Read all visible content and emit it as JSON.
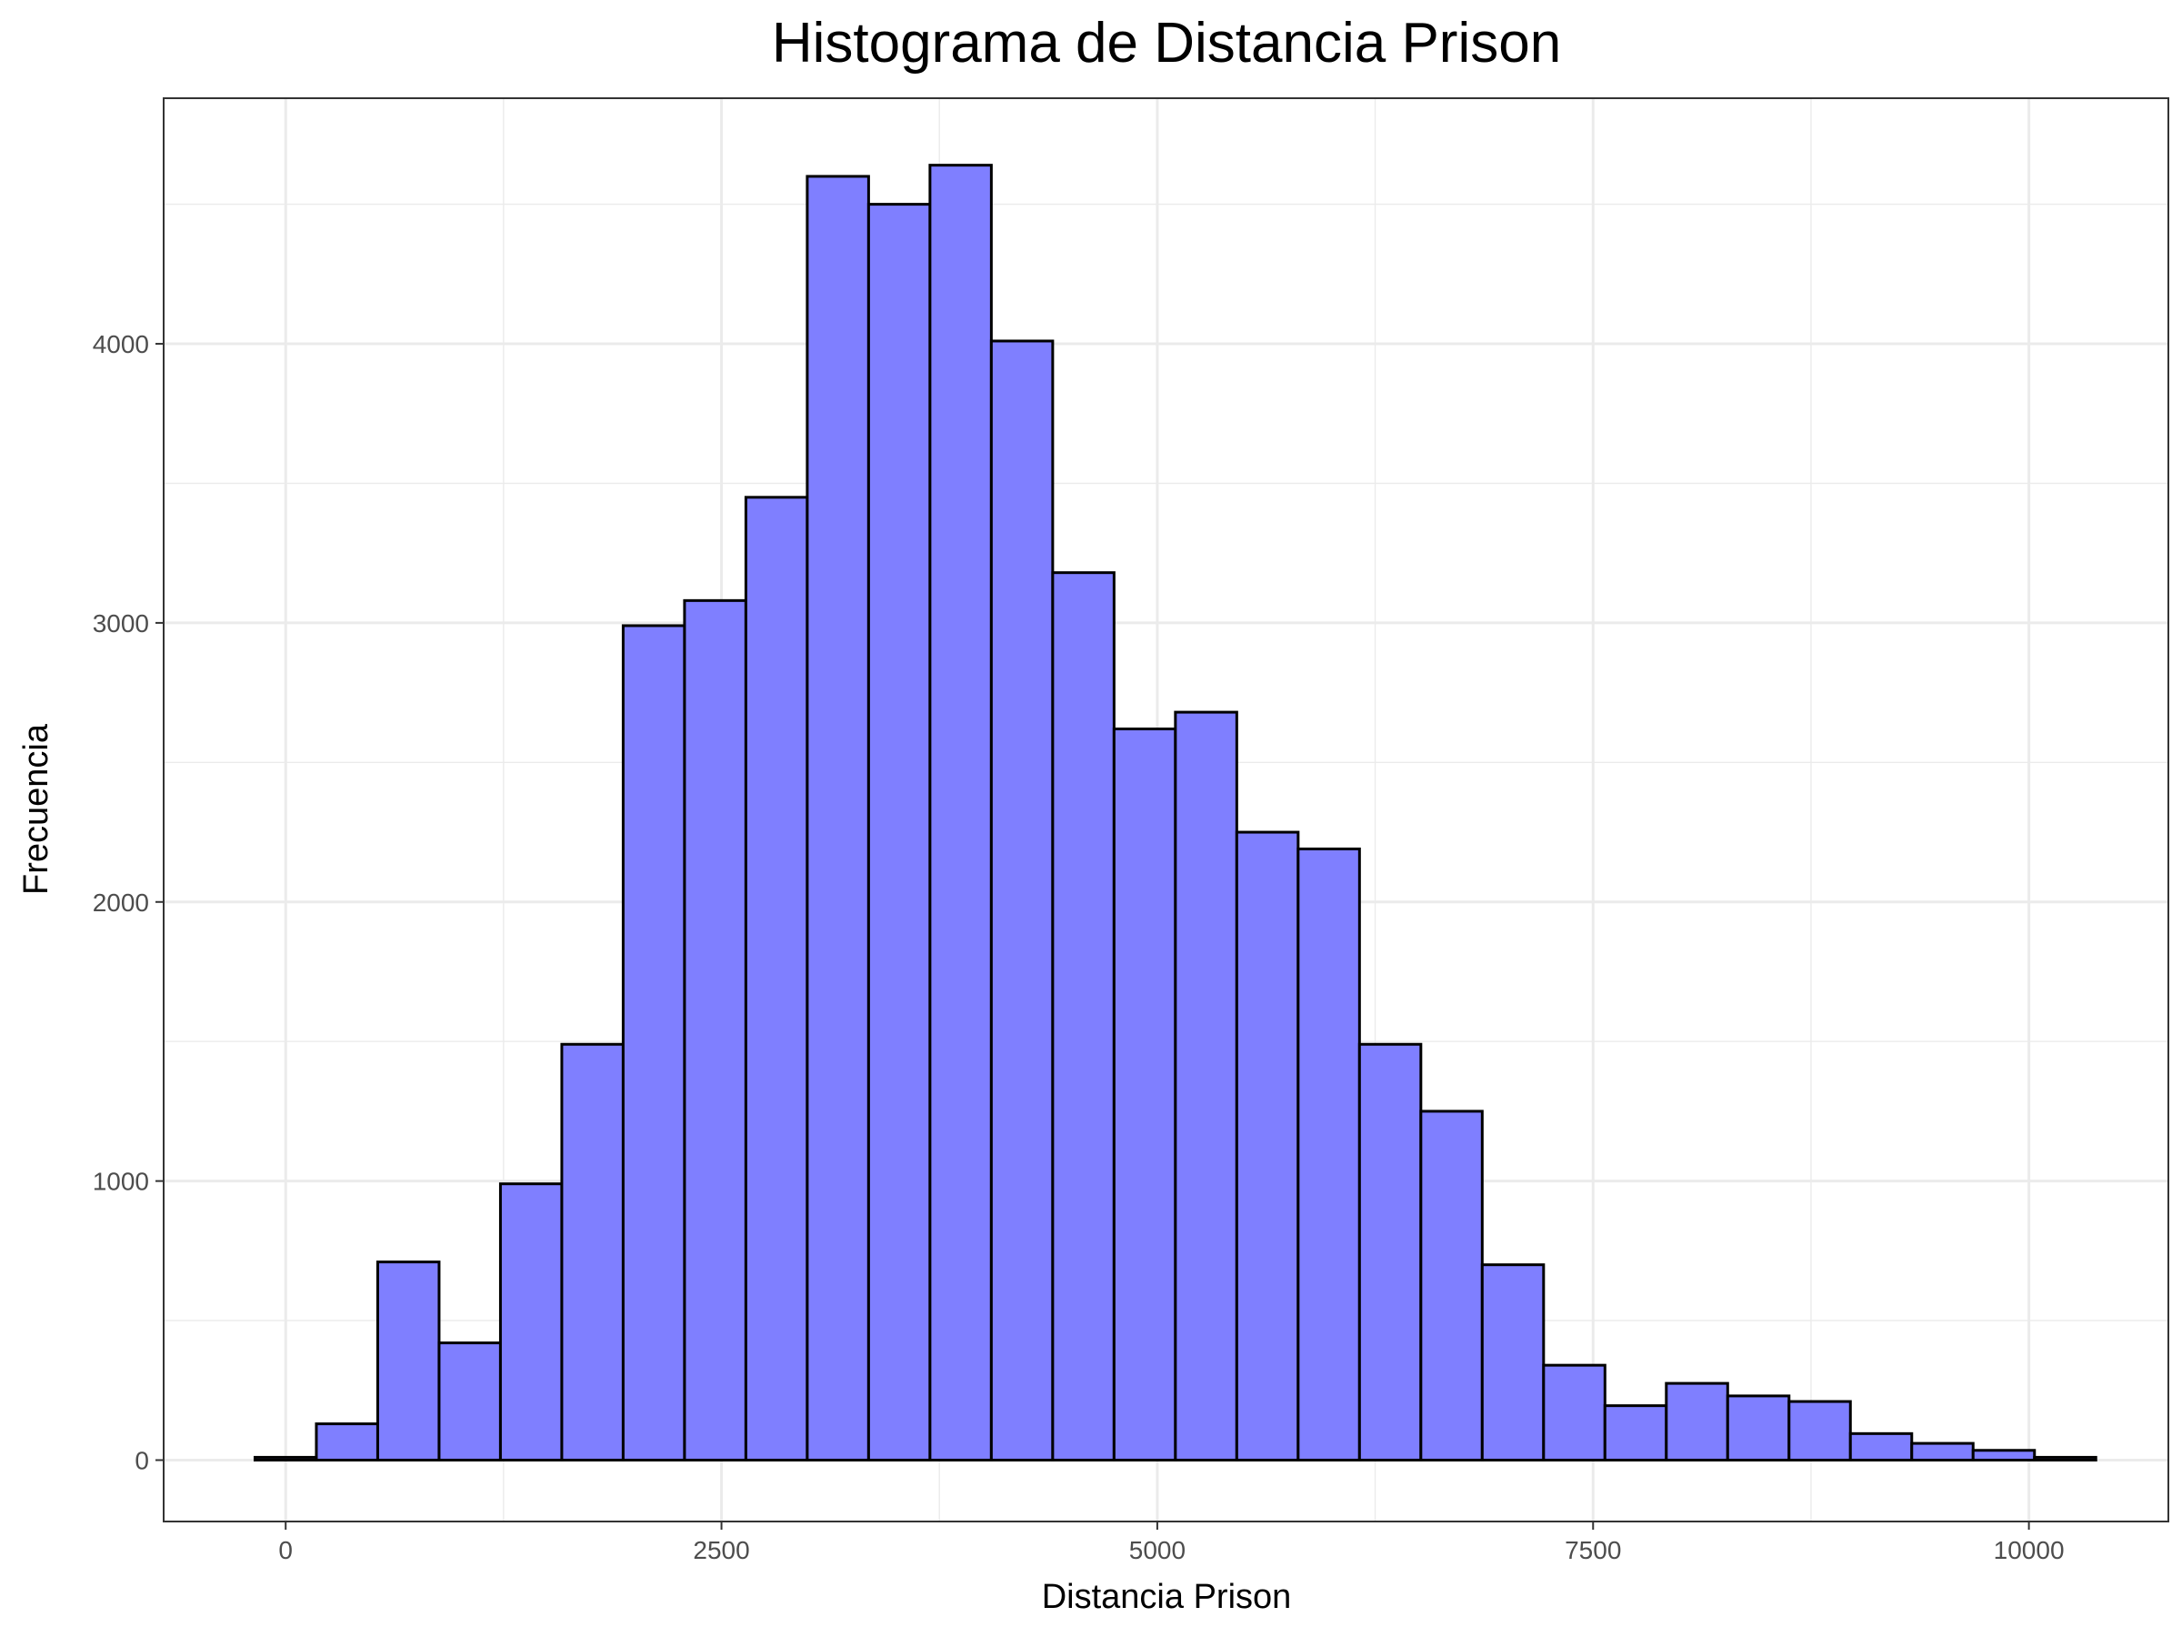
{
  "chart_data": {
    "type": "bar",
    "title": "Histograma de Distancia Prison",
    "xlabel": "Distancia Prison",
    "ylabel": "Frecuencia",
    "bin_width": 352,
    "bin_starts": [
      -176,
      176,
      528,
      880,
      1232,
      1584,
      1936,
      2288,
      2640,
      2992,
      3344,
      3696,
      4048,
      4400,
      4752,
      5104,
      5456,
      5808,
      6160,
      6512,
      6864,
      7216,
      7568,
      7920,
      8272,
      8624,
      8976,
      9328,
      9680,
      10032
    ],
    "values": [
      10,
      130,
      710,
      420,
      990,
      1490,
      2990,
      3080,
      3450,
      4600,
      4500,
      4640,
      4010,
      3180,
      2620,
      2680,
      2250,
      2190,
      1490,
      1250,
      700,
      340,
      195,
      275,
      230,
      210,
      95,
      60,
      35,
      10
    ],
    "xlim": [
      -700,
      10800
    ],
    "ylim": [
      -220,
      4880
    ],
    "x_ticks": [
      0,
      2500,
      5000,
      7500,
      10000
    ],
    "y_ticks": [
      0,
      1000,
      2000,
      3000,
      4000
    ],
    "x_tick_labels": [
      "0",
      "2500",
      "5000",
      "7500",
      "10000"
    ],
    "y_tick_labels": [
      "0",
      "1000",
      "2000",
      "3000",
      "4000"
    ],
    "grid": true,
    "legend": "none",
    "colors": {
      "bar_fill": "#7f7fff",
      "bar_stroke": "#000000",
      "grid": "#ebebeb",
      "panel_border": "#333333",
      "tick_text": "#4d4d4d"
    }
  }
}
